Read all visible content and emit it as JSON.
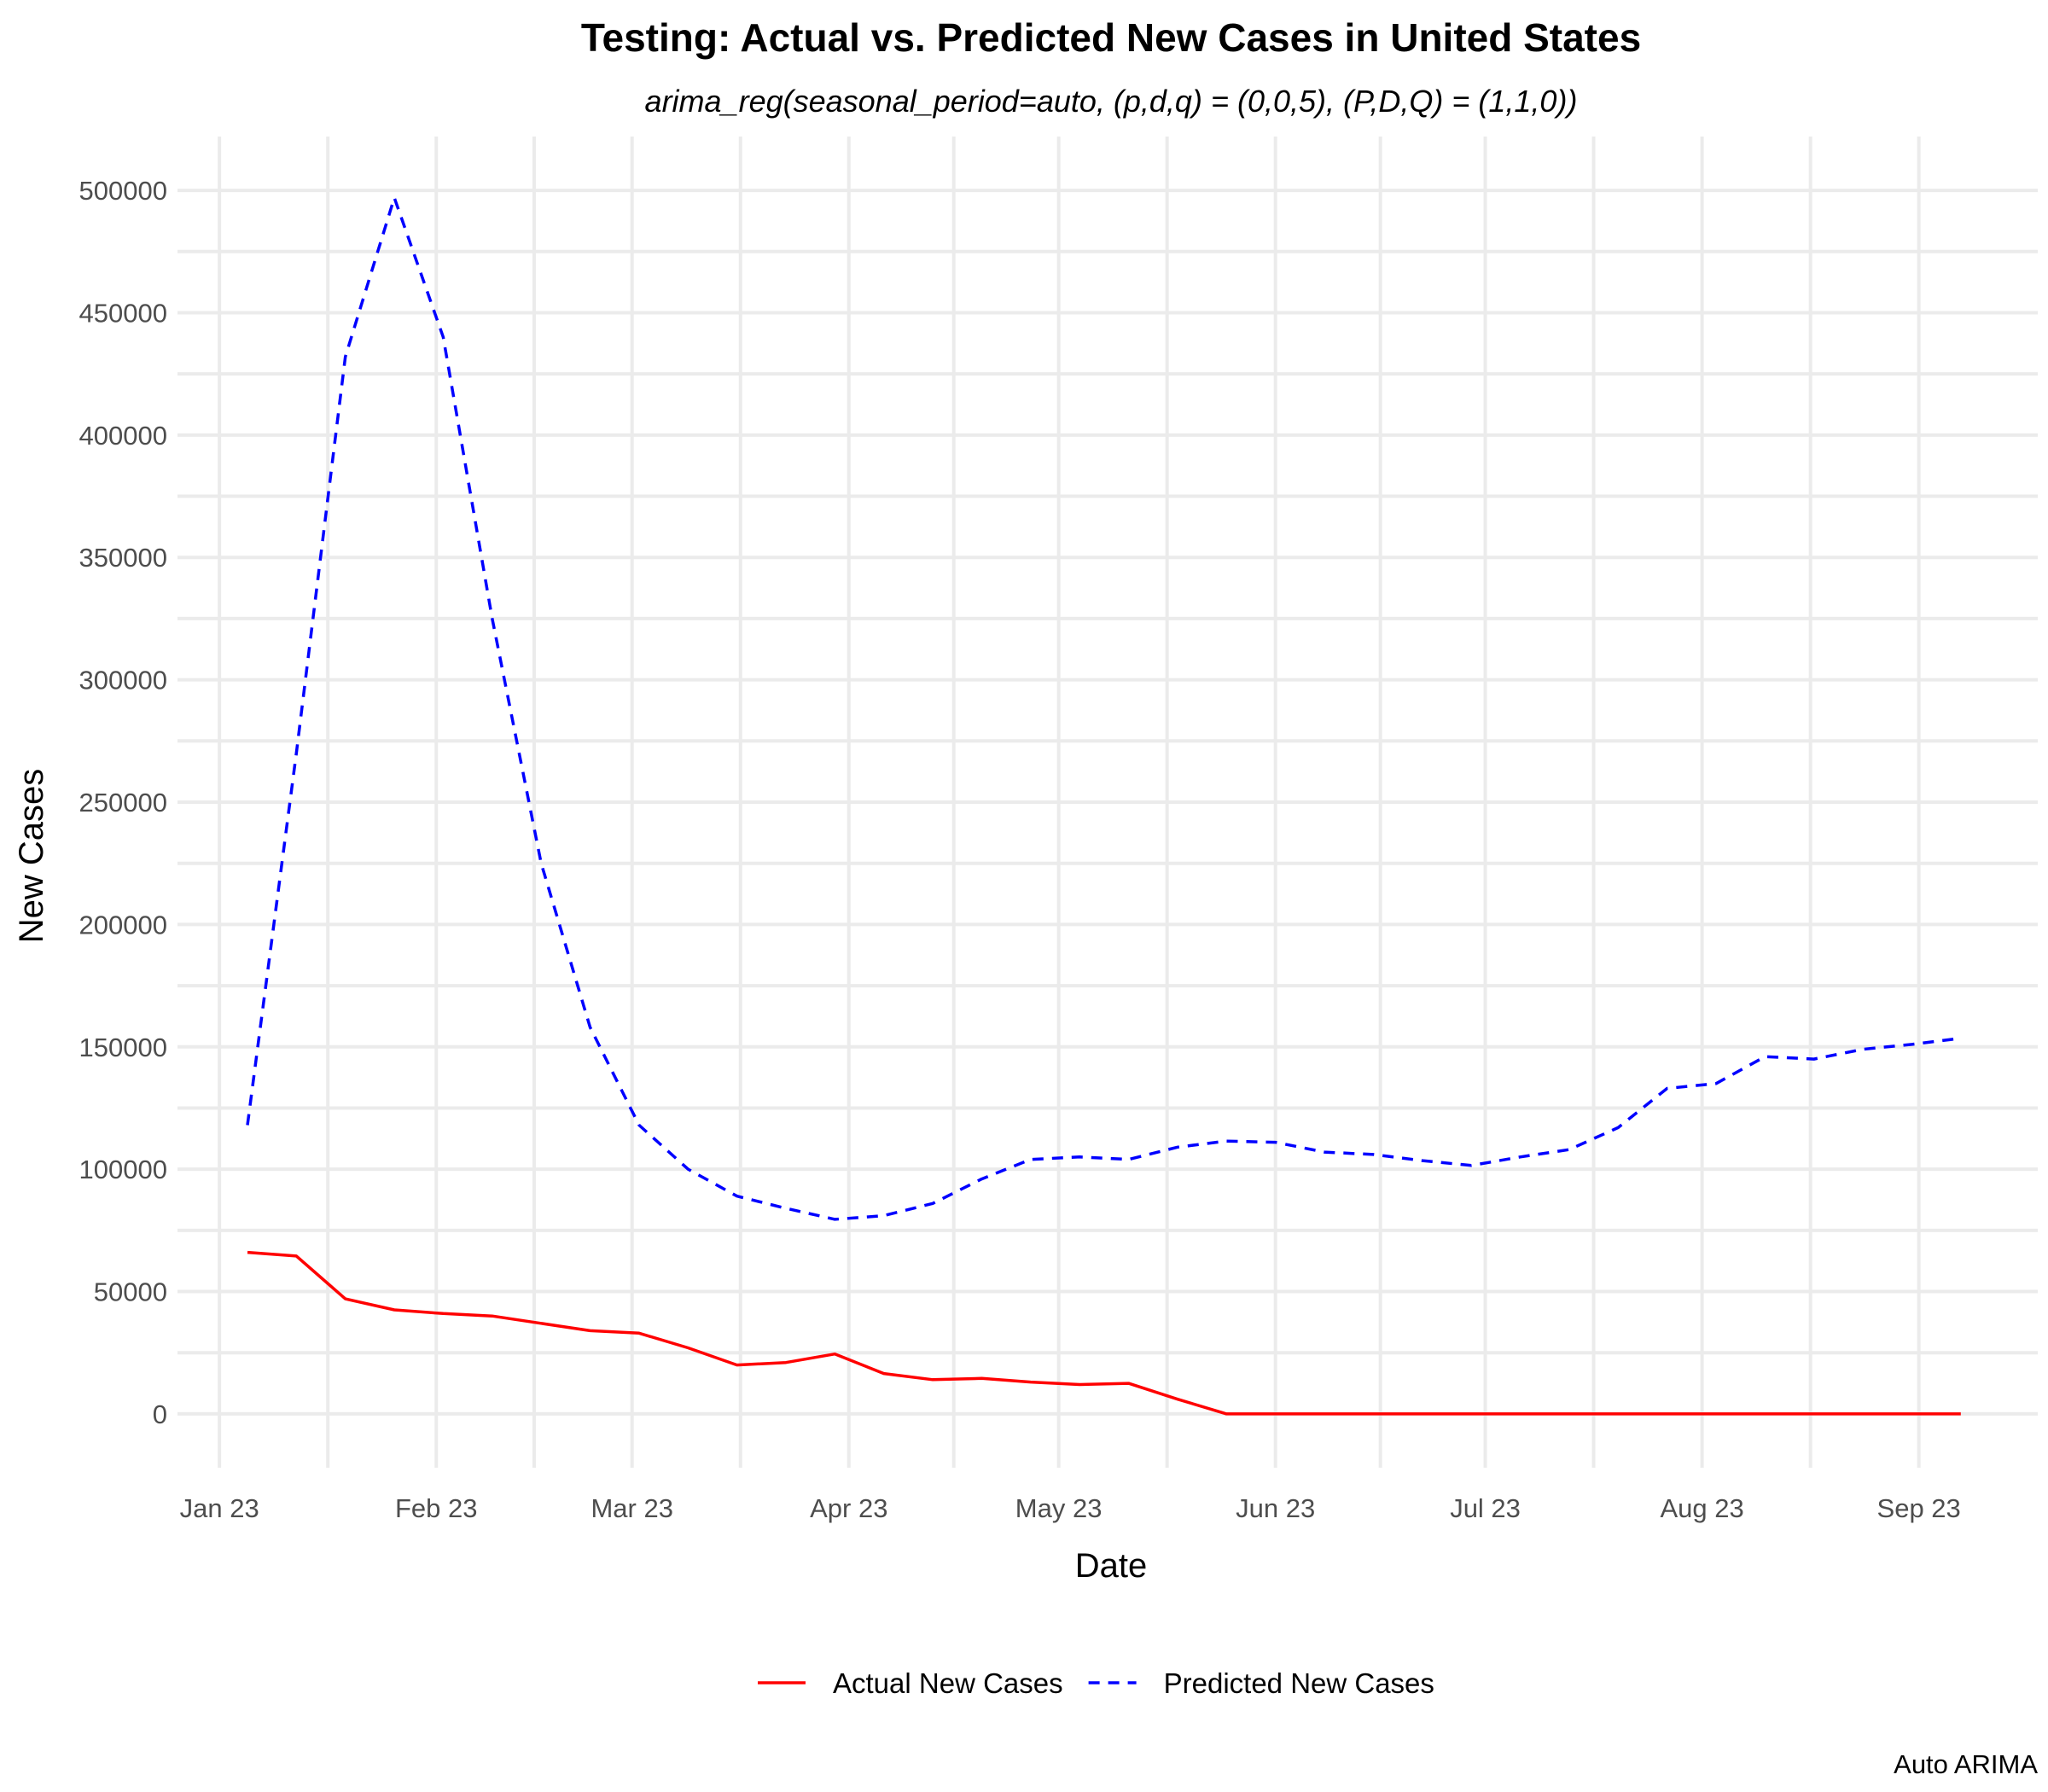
{
  "chart_data": {
    "type": "line",
    "title": "Testing: Actual vs. Predicted New Cases in United States",
    "subtitle": "arima_reg(seasonal_period=auto, (p,d,q) = (0,0,5), (P,D,Q) = (1,1,0))",
    "xlabel": "Date",
    "ylabel": "New Cases",
    "caption": "Auto ARIMA",
    "x_type": "date",
    "xlim": [
      "2022-12-26",
      "2023-09-18"
    ],
    "ylim": [
      -22000,
      522000
    ],
    "x_ticks": [
      {
        "date": "2023-01-01",
        "label": "Jan 23"
      },
      {
        "date": "2023-02-01",
        "label": "Feb 23"
      },
      {
        "date": "2023-03-01",
        "label": "Mar 23"
      },
      {
        "date": "2023-04-01",
        "label": "Apr 23"
      },
      {
        "date": "2023-05-01",
        "label": "May 23"
      },
      {
        "date": "2023-06-01",
        "label": "Jun 23"
      },
      {
        "date": "2023-07-01",
        "label": "Jul 23"
      },
      {
        "date": "2023-08-01",
        "label": "Aug 23"
      },
      {
        "date": "2023-09-01",
        "label": "Sep 23"
      }
    ],
    "y_ticks": [
      0,
      50000,
      100000,
      150000,
      200000,
      250000,
      300000,
      350000,
      400000,
      450000,
      500000
    ],
    "y_tick_labels": [
      "0",
      "50000",
      "100000",
      "150000",
      "200000",
      "250000",
      "300000",
      "350000",
      "400000",
      "450000",
      "500000"
    ],
    "grid": true,
    "legend_position": "bottom",
    "x": [
      "2023-01-05",
      "2023-01-12",
      "2023-01-19",
      "2023-01-26",
      "2023-02-02",
      "2023-02-09",
      "2023-02-16",
      "2023-02-23",
      "2023-03-02",
      "2023-03-09",
      "2023-03-16",
      "2023-03-23",
      "2023-03-30",
      "2023-04-06",
      "2023-04-13",
      "2023-04-20",
      "2023-04-27",
      "2023-05-04",
      "2023-05-11",
      "2023-05-18",
      "2023-05-25",
      "2023-06-01",
      "2023-06-08",
      "2023-06-15",
      "2023-06-22",
      "2023-06-29",
      "2023-07-06",
      "2023-07-13",
      "2023-07-20",
      "2023-07-27",
      "2023-08-03",
      "2023-08-10",
      "2023-08-17",
      "2023-08-24",
      "2023-08-31",
      "2023-09-07"
    ],
    "series": [
      {
        "name": "Actual New Cases",
        "color": "#ff0000",
        "dash": "solid",
        "values": [
          66000,
          64500,
          47000,
          42500,
          41000,
          40000,
          37000,
          34000,
          33000,
          27000,
          20000,
          21000,
          24500,
          16500,
          14000,
          14500,
          13000,
          12000,
          12500,
          6000,
          0,
          0,
          0,
          0,
          0,
          0,
          0,
          0,
          0,
          0,
          0,
          0,
          0,
          0,
          0,
          0
        ]
      },
      {
        "name": "Predicted New Cases",
        "color": "#0000ff",
        "dash": "dashed",
        "values": [
          118000,
          270000,
          432000,
          497000,
          440000,
          325000,
          225000,
          158000,
          118000,
          100000,
          89000,
          84000,
          79500,
          81000,
          86000,
          96000,
          104000,
          105000,
          104000,
          109000,
          111500,
          111000,
          107000,
          106000,
          103500,
          101500,
          105000,
          108000,
          117000,
          133000,
          135000,
          146000,
          145000,
          149000,
          151000,
          153500
        ]
      }
    ]
  }
}
